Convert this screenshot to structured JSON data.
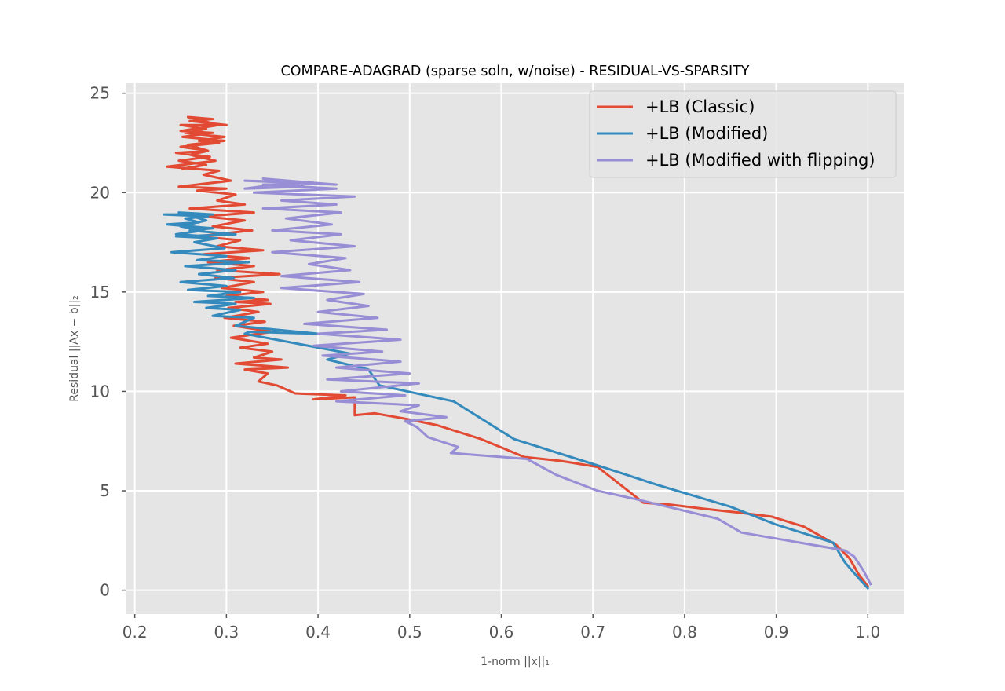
{
  "chart_data": {
    "type": "line",
    "title": "COMPARE-ADAGRAD (sparse soln, w/noise) - RESIDUAL-VS-SPARSITY",
    "xlabel": "1-norm ||x||₁",
    "ylabel": "Residual ||Ax − b||₂",
    "xlim": [
      0.19,
      1.04
    ],
    "ylim": [
      -1.2,
      25.5
    ],
    "xticks": [
      0.2,
      0.3,
      0.4,
      0.5,
      0.6,
      0.7,
      0.8,
      0.9,
      1.0
    ],
    "xtick_labels": [
      "0.2",
      "0.3",
      "0.4",
      "0.5",
      "0.6",
      "0.7",
      "0.8",
      "0.9",
      "1.0"
    ],
    "yticks": [
      0,
      5,
      10,
      15,
      20,
      25
    ],
    "ytick_labels": [
      "0",
      "5",
      "10",
      "15",
      "20",
      "25"
    ],
    "grid": true,
    "legend_position": "top-right",
    "background": "#e5e5e5",
    "series": [
      {
        "name": "+LB (Classic)",
        "color": "#e24a33",
        "x": [
          1.0,
          0.99,
          0.98,
          0.965,
          0.93,
          0.895,
          0.86,
          0.82,
          0.785,
          0.755,
          0.705,
          0.665,
          0.625,
          0.578,
          0.53,
          0.498,
          0.462,
          0.44,
          0.44,
          0.395,
          0.43,
          0.375,
          0.355,
          0.335,
          0.345,
          0.32,
          0.367,
          0.31,
          0.36,
          0.33,
          0.35,
          0.315,
          0.345,
          0.305,
          0.35,
          0.308,
          0.342,
          0.298,
          0.335,
          0.302,
          0.348,
          0.31,
          0.345,
          0.3,
          0.34,
          0.295,
          0.33,
          0.288,
          0.358,
          0.29,
          0.33,
          0.28,
          0.325,
          0.275,
          0.34,
          0.29,
          0.315,
          0.268,
          0.328,
          0.285,
          0.32,
          0.275,
          0.33,
          0.26,
          0.32,
          0.29,
          0.31,
          0.268,
          0.3,
          0.248,
          0.305,
          0.275,
          0.292,
          0.235,
          0.288,
          0.26,
          0.28,
          0.25,
          0.292,
          0.27,
          0.298,
          0.255,
          0.278,
          0.25,
          0.3,
          0.26,
          0.285,
          0.258,
          0.292,
          0.25,
          0.285,
          0.252,
          0.298,
          0.258,
          0.28,
          0.245,
          0.282,
          0.248,
          0.278,
          0.252
        ],
        "y": [
          0.2,
          0.8,
          1.6,
          2.3,
          3.2,
          3.7,
          3.9,
          4.1,
          4.3,
          4.4,
          6.2,
          6.5,
          6.7,
          7.6,
          8.3,
          8.6,
          8.9,
          8.8,
          9.7,
          9.6,
          9.8,
          9.9,
          10.3,
          10.5,
          10.9,
          11.1,
          11.2,
          11.4,
          11.6,
          11.7,
          12.0,
          12.2,
          12.4,
          12.7,
          13.0,
          13.3,
          13.5,
          13.7,
          14.0,
          14.2,
          14.4,
          14.5,
          14.6,
          14.8,
          15.0,
          15.2,
          15.5,
          15.7,
          15.9,
          16.1,
          16.3,
          16.5,
          16.7,
          16.9,
          17.1,
          17.3,
          17.6,
          17.8,
          18.1,
          18.3,
          18.6,
          18.8,
          19.0,
          19.2,
          19.4,
          19.6,
          19.9,
          20.1,
          20.2,
          20.3,
          20.6,
          20.9,
          21.1,
          21.3,
          21.6,
          21.9,
          22.1,
          22.3,
          22.5,
          22.6,
          22.8,
          23.0,
          23.2,
          23.4,
          23.4,
          23.6,
          23.7,
          23.8,
          23.4,
          23.1,
          23.0,
          22.8,
          22.6,
          22.4,
          22.1,
          22.0,
          21.8,
          21.6,
          21.4,
          21.2
        ]
      },
      {
        "name": "+LB (Modified)",
        "color": "#348abd",
        "x": [
          1.0,
          0.99,
          0.975,
          0.962,
          0.9,
          0.85,
          0.77,
          0.71,
          0.614,
          0.548,
          0.467,
          0.455,
          0.41,
          0.435,
          0.32,
          0.325,
          0.4,
          0.31,
          0.33,
          0.285,
          0.315,
          0.278,
          0.31,
          0.265,
          0.33,
          0.28,
          0.315,
          0.258,
          0.3,
          0.25,
          0.308,
          0.27,
          0.31,
          0.255,
          0.325,
          0.268,
          0.3,
          0.24,
          0.298,
          0.265,
          0.29,
          0.245,
          0.31,
          0.26,
          0.285,
          0.235,
          0.27,
          0.255,
          0.28,
          0.232,
          0.285,
          0.248,
          0.278,
          0.25,
          0.275,
          0.245,
          0.28
        ],
        "y": [
          0.1,
          0.6,
          1.4,
          2.4,
          3.3,
          4.2,
          5.3,
          6.2,
          7.6,
          9.5,
          10.3,
          11.1,
          11.6,
          11.9,
          12.9,
          13.0,
          12.9,
          13.3,
          13.7,
          13.8,
          14.1,
          14.2,
          14.4,
          14.5,
          14.7,
          14.8,
          15.0,
          15.1,
          15.3,
          15.5,
          15.7,
          15.9,
          16.1,
          16.3,
          16.5,
          16.6,
          16.8,
          17.0,
          17.2,
          17.5,
          17.7,
          17.8,
          17.9,
          18.1,
          18.2,
          18.4,
          18.5,
          18.7,
          18.8,
          18.9,
          18.9,
          19.0,
          18.6,
          18.3,
          18.1,
          17.9,
          17.8
        ]
      },
      {
        "name": "+LB (Modified with flipping)",
        "color": "#988ed5",
        "x": [
          1.003,
          0.995,
          0.985,
          0.975,
          0.9,
          0.862,
          0.836,
          0.745,
          0.705,
          0.66,
          0.628,
          0.545,
          0.553,
          0.52,
          0.508,
          0.495,
          0.54,
          0.49,
          0.51,
          0.42,
          0.495,
          0.425,
          0.51,
          0.41,
          0.5,
          0.42,
          0.49,
          0.405,
          0.47,
          0.395,
          0.49,
          0.4,
          0.475,
          0.385,
          0.465,
          0.4,
          0.455,
          0.41,
          0.45,
          0.36,
          0.445,
          0.36,
          0.435,
          0.39,
          0.43,
          0.35,
          0.44,
          0.37,
          0.425,
          0.35,
          0.415,
          0.365,
          0.425,
          0.34,
          0.42,
          0.36,
          0.44,
          0.33,
          0.42,
          0.34,
          0.395,
          0.32,
          0.42,
          0.34,
          0.385,
          0.32,
          0.37
        ],
        "y": [
          0.3,
          1.0,
          1.7,
          2.0,
          2.6,
          2.9,
          3.6,
          4.6,
          5.0,
          5.8,
          6.6,
          6.9,
          7.2,
          7.7,
          8.2,
          8.5,
          8.7,
          9.0,
          9.3,
          9.5,
          9.8,
          10.0,
          10.4,
          10.6,
          10.9,
          11.2,
          11.5,
          11.8,
          12.0,
          12.3,
          12.6,
          12.9,
          13.1,
          13.4,
          13.7,
          14.0,
          14.3,
          14.6,
          14.9,
          15.2,
          15.5,
          15.8,
          16.1,
          16.4,
          16.7,
          17.0,
          17.3,
          17.6,
          17.9,
          18.1,
          18.4,
          18.7,
          19.0,
          19.2,
          19.4,
          19.6,
          19.8,
          20.0,
          20.2,
          20.4,
          20.5,
          20.6,
          20.4,
          20.7,
          20.3,
          20.2,
          20.5
        ]
      }
    ]
  }
}
